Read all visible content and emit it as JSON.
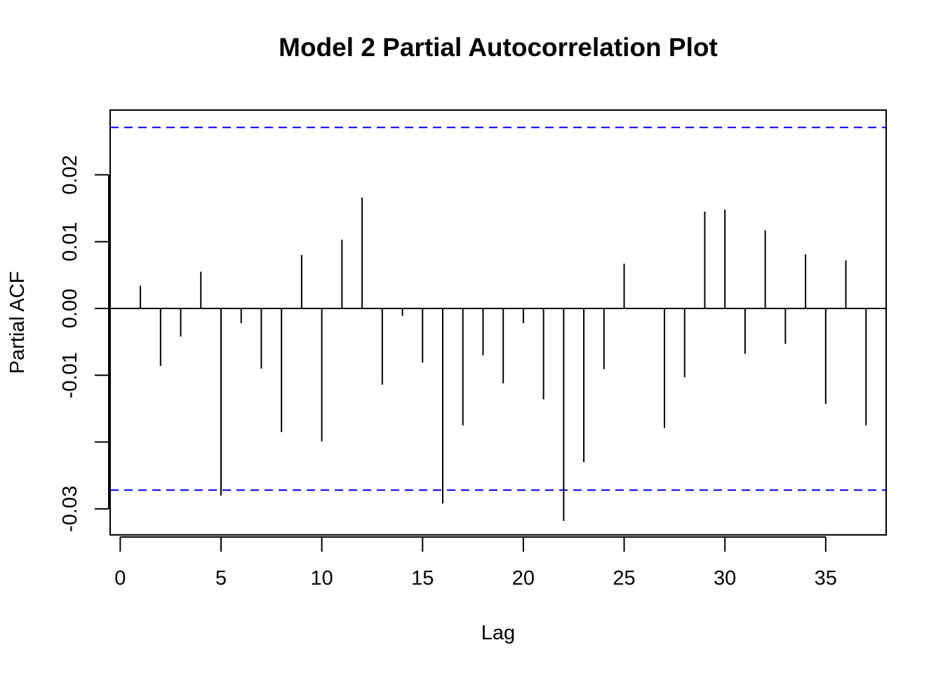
{
  "chart_data": {
    "type": "bar",
    "title": "Model 2 Partial Autocorrelation Plot",
    "xlabel": "Lag",
    "ylabel": "Partial ACF",
    "x_ticks": [
      0,
      5,
      10,
      15,
      20,
      25,
      30,
      35
    ],
    "x_tick_labels": [
      "0",
      "5",
      "10",
      "15",
      "20",
      "25",
      "30",
      "35"
    ],
    "y_ticks": [
      -0.03,
      -0.02,
      -0.01,
      0.0,
      0.01,
      0.02
    ],
    "y_tick_labels": [
      "-0.03",
      "",
      "-0.01",
      "0.00",
      "0.01",
      "0.02"
    ],
    "xlim": [
      -0.5,
      38
    ],
    "ylim": [
      -0.0339,
      0.0297
    ],
    "confidence_band": {
      "upper": 0.0271,
      "lower": -0.0272,
      "color": "#0000ff",
      "style": "dashed"
    },
    "series": [
      {
        "lags": [
          1,
          2,
          3,
          4,
          5,
          6,
          7,
          8,
          9,
          10,
          11,
          12,
          13,
          14,
          15,
          16,
          17,
          18,
          19,
          20,
          21,
          22,
          23,
          24,
          25,
          26,
          27,
          28,
          29,
          30,
          31,
          32,
          33,
          34,
          35,
          36,
          37
        ],
        "values": [
          0.0034,
          -0.0086,
          -0.0042,
          0.0055,
          -0.028,
          -0.0022,
          -0.009,
          -0.0185,
          0.008,
          -0.0199,
          0.0103,
          0.0166,
          -0.0114,
          -0.0011,
          -0.0081,
          -0.0292,
          -0.0175,
          -0.007,
          -0.0112,
          -0.0022,
          -0.0136,
          -0.0318,
          -0.023,
          -0.0091,
          0.0067,
          0.0001,
          -0.0179,
          -0.0103,
          0.0145,
          0.0148,
          -0.0068,
          0.0117,
          -0.0053,
          0.0081,
          -0.0143,
          0.0072,
          -0.0175
        ]
      }
    ],
    "colors": {
      "bars": "#000000",
      "zero_line": "#000000",
      "band": "#0000ff"
    }
  }
}
